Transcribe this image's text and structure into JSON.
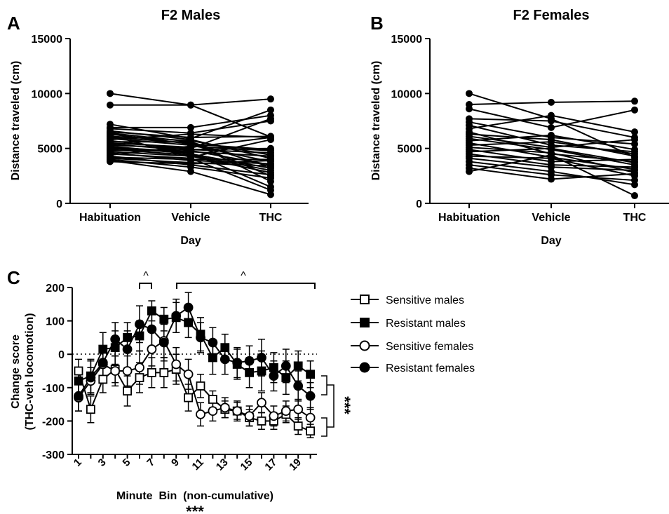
{
  "colors": {
    "ink": "#000000",
    "background": "#ffffff"
  },
  "chart_data": [
    {
      "panel": "A",
      "type": "line",
      "title": "F2 Males",
      "xlabel": "Day",
      "ylabel": "Distance traveled (cm)",
      "categories": [
        "Habituation",
        "Vehicle",
        "THC"
      ],
      "ylim": [
        0,
        15000
      ],
      "yticks": [
        "0",
        "5000",
        "10000",
        "15000"
      ],
      "series": [
        {
          "values": [
            10000,
            8950,
            6050
          ]
        },
        {
          "values": [
            8950,
            8950,
            9500
          ]
        },
        {
          "values": [
            7200,
            5900,
            8500
          ]
        },
        {
          "values": [
            6900,
            6900,
            8000
          ]
        },
        {
          "values": [
            6800,
            6400,
            7500
          ]
        },
        {
          "values": [
            6600,
            5800,
            4100
          ]
        },
        {
          "values": [
            6500,
            6000,
            6100
          ]
        },
        {
          "values": [
            6400,
            5600,
            3300
          ]
        },
        {
          "values": [
            6300,
            5400,
            4900
          ]
        },
        {
          "values": [
            6200,
            4200,
            5800
          ]
        },
        {
          "values": [
            6100,
            5700,
            4400
          ]
        },
        {
          "values": [
            6000,
            5500,
            2500
          ]
        },
        {
          "values": [
            5900,
            5300,
            3800
          ]
        },
        {
          "values": [
            5800,
            6300,
            6000
          ]
        },
        {
          "values": [
            5700,
            4900,
            4600
          ]
        },
        {
          "values": [
            5600,
            5600,
            2000
          ]
        },
        {
          "values": [
            5500,
            5100,
            6000
          ]
        },
        {
          "values": [
            5400,
            4800,
            3500
          ]
        },
        {
          "values": [
            5300,
            5000,
            7700
          ]
        },
        {
          "values": [
            5200,
            4500,
            3200
          ]
        },
        {
          "values": [
            5100,
            4700,
            4300
          ]
        },
        {
          "values": [
            5000,
            4600,
            1500
          ]
        },
        {
          "values": [
            4900,
            4400,
            3000
          ]
        },
        {
          "values": [
            4800,
            4900,
            5000
          ]
        },
        {
          "values": [
            4700,
            4300,
            2800
          ]
        },
        {
          "values": [
            4600,
            3900,
            3600
          ]
        },
        {
          "values": [
            4500,
            4100,
            1200
          ]
        },
        {
          "values": [
            4400,
            5200,
            4800
          ]
        },
        {
          "values": [
            4300,
            3500,
            2600
          ]
        },
        {
          "values": [
            4200,
            4000,
            4000
          ]
        },
        {
          "values": [
            4100,
            3700,
            3400
          ]
        },
        {
          "values": [
            4000,
            3300,
            2300
          ]
        },
        {
          "values": [
            3900,
            2900,
            800
          ]
        },
        {
          "values": [
            3800,
            3600,
            3900
          ]
        }
      ]
    },
    {
      "panel": "B",
      "type": "line",
      "title": "F2 Females",
      "xlabel": "Day",
      "ylabel": "Distance traveled (cm)",
      "categories": [
        "Habituation",
        "Vehicle",
        "THC"
      ],
      "ylim": [
        0,
        15000
      ],
      "yticks": [
        "0",
        "5000",
        "10000",
        "15000"
      ],
      "series": [
        {
          "values": [
            10000,
            7700,
            4200
          ]
        },
        {
          "values": [
            9000,
            9200,
            9300
          ]
        },
        {
          "values": [
            8600,
            6900,
            8500
          ]
        },
        {
          "values": [
            7700,
            7500,
            6000
          ]
        },
        {
          "values": [
            7400,
            6000,
            5400
          ]
        },
        {
          "values": [
            7100,
            5300,
            4700
          ]
        },
        {
          "values": [
            6800,
            8000,
            6500
          ]
        },
        {
          "values": [
            6500,
            4500,
            3800
          ]
        },
        {
          "values": [
            6300,
            5800,
            4300
          ]
        },
        {
          "values": [
            6100,
            5100,
            5800
          ]
        },
        {
          "values": [
            5900,
            4900,
            3500
          ]
        },
        {
          "values": [
            5700,
            6200,
            4900
          ]
        },
        {
          "values": [
            5500,
            4200,
            3100
          ]
        },
        {
          "values": [
            5300,
            5600,
            4500
          ]
        },
        {
          "values": [
            5100,
            4600,
            2800
          ]
        },
        {
          "values": [
            4900,
            3800,
            4000
          ]
        },
        {
          "values": [
            4700,
            5000,
            3700
          ]
        },
        {
          "values": [
            4500,
            3500,
            3300
          ]
        },
        {
          "values": [
            4300,
            4100,
            2500
          ]
        },
        {
          "values": [
            4100,
            3300,
            3000
          ]
        },
        {
          "values": [
            3800,
            2900,
            1700
          ]
        },
        {
          "values": [
            3500,
            2600,
            2100
          ]
        },
        {
          "values": [
            3200,
            2200,
            2700
          ]
        },
        {
          "values": [
            2900,
            4400,
            700
          ]
        }
      ]
    },
    {
      "panel": "C",
      "type": "line",
      "xlabel": "Minute  Bin  (non-cumulative)",
      "xlabel_mark": "***",
      "ylabel": [
        "Change score",
        "(THC-veh locomotion)"
      ],
      "ylim": [
        -300,
        200
      ],
      "yticks": [
        "-300",
        "-200",
        "-100",
        "0",
        "100",
        "200"
      ],
      "x": [
        1,
        2,
        3,
        4,
        5,
        6,
        7,
        8,
        9,
        10,
        11,
        12,
        13,
        14,
        15,
        16,
        17,
        18,
        19,
        20
      ],
      "xticks": [
        "1",
        "3",
        "5",
        "7",
        "9",
        "11",
        "13",
        "15",
        "17",
        "19"
      ],
      "annotations": [
        "^",
        "^",
        "***"
      ],
      "brackets_top": [
        [
          6,
          7
        ],
        [
          9,
          20
        ]
      ],
      "series": [
        {
          "name": "Sensitive males",
          "marker": "open-square",
          "values": [
            -50,
            -165,
            -75,
            -45,
            -110,
            -70,
            -55,
            -55,
            -45,
            -130,
            -95,
            -135,
            -165,
            -170,
            -190,
            -200,
            -200,
            -180,
            -215,
            -230
          ],
          "err": [
            35,
            40,
            40,
            40,
            45,
            45,
            45,
            45,
            45,
            40,
            35,
            25,
            25,
            25,
            25,
            25,
            25,
            25,
            25,
            20
          ]
        },
        {
          "name": "Resistant males",
          "marker": "filled-square",
          "values": [
            -80,
            -65,
            15,
            20,
            50,
            55,
            130,
            105,
            110,
            95,
            60,
            -10,
            20,
            -30,
            -55,
            -50,
            -40,
            -70,
            -35,
            -60
          ],
          "err": [
            40,
            50,
            50,
            50,
            45,
            45,
            30,
            35,
            45,
            45,
            50,
            50,
            40,
            45,
            45,
            60,
            45,
            50,
            45,
            40
          ]
        },
        {
          "name": "Sensitive females",
          "marker": "open-circle",
          "values": [
            -130,
            -80,
            -30,
            -50,
            -50,
            -40,
            15,
            40,
            -30,
            -60,
            -180,
            -170,
            -160,
            -170,
            -185,
            -145,
            -185,
            -170,
            -165,
            -190
          ],
          "err": [
            40,
            40,
            45,
            45,
            45,
            50,
            50,
            50,
            50,
            45,
            35,
            30,
            30,
            30,
            30,
            30,
            30,
            30,
            30,
            30
          ]
        },
        {
          "name": "Resistant females",
          "marker": "filled-circle",
          "values": [
            -125,
            -70,
            -25,
            45,
            15,
            90,
            75,
            35,
            115,
            140,
            50,
            35,
            -15,
            -25,
            -20,
            -10,
            -65,
            -35,
            -95,
            -125
          ],
          "err": [
            45,
            50,
            50,
            50,
            55,
            55,
            55,
            55,
            50,
            45,
            45,
            45,
            45,
            45,
            45,
            55,
            45,
            50,
            45,
            40
          ]
        }
      ]
    }
  ]
}
